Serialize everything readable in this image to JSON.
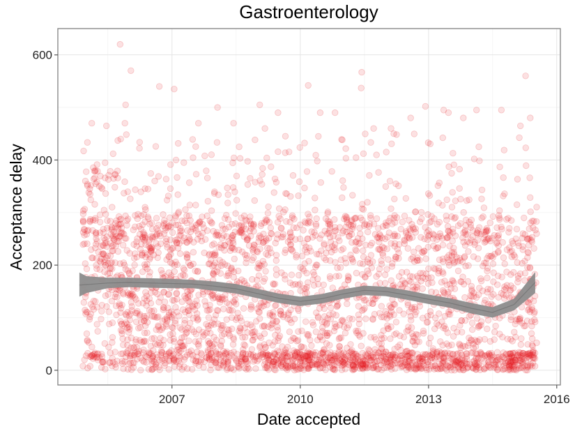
{
  "chart_data": {
    "type": "scatter",
    "title": "Gastroenterology",
    "xlabel": "Date accepted",
    "ylabel": "Acceptance delay",
    "x_axis_type": "date",
    "xlim": [
      "2004-05-01",
      "2016-02-01"
    ],
    "ylim": [
      -28,
      650
    ],
    "x_ticks": [
      {
        "value": "2007-01-01",
        "label": "2007"
      },
      {
        "value": "2010-01-01",
        "label": "2010"
      },
      {
        "value": "2013-01-01",
        "label": "2013"
      },
      {
        "value": "2016-01-01",
        "label": "2016"
      }
    ],
    "y_ticks": [
      0,
      200,
      400,
      600
    ],
    "grid": true,
    "legend": "none",
    "point_color": "#e41a1c",
    "point_opacity": 0.13,
    "smooth_color": "#8c8c8c",
    "series": [
      {
        "kind": "points",
        "x": [
          "2005-10-15",
          "2005-12-01",
          "2006-09-15",
          "2007-01-20",
          "2008-01-25",
          "2009-01-20",
          "2010-03-10",
          "2011-06-10",
          "2011-06-05",
          "2012-03-10",
          "2012-12-05",
          "2015-04-10",
          "2006-01-15",
          "2005-11-25",
          "2005-10-20",
          "2008-06-10",
          "2009-03-05",
          "2010-06-20",
          "2011-09-20",
          "2012-08-01",
          "2013-05-10",
          "2014-02-15",
          "2014-09-15",
          "2015-02-25",
          "2015-05-20",
          "2005-02-15",
          "2005-06-20",
          "2009-06-25",
          "2012-02-15",
          "2013-06-20",
          "2007-08-15",
          "2010-10-25",
          "2013-10-25"
        ],
        "y": [
          620,
          505,
          540,
          535,
          500,
          505,
          542,
          567,
          537,
          450,
          502,
          560,
          570,
          470,
          440,
          470,
          460,
          490,
          460,
          480,
          495,
          495,
          495,
          465,
          480,
          470,
          465,
          490,
          460,
          490,
          470,
          490,
          480
        ]
      },
      {
        "kind": "smooth",
        "x": [
          "2004-11-01",
          "2005-01-01",
          "2005-07-01",
          "2006-01-01",
          "2006-07-01",
          "2007-01-01",
          "2007-07-01",
          "2008-01-01",
          "2008-07-01",
          "2009-01-01",
          "2009-07-01",
          "2010-01-01",
          "2010-07-01",
          "2011-01-01",
          "2011-07-01",
          "2012-01-01",
          "2012-07-01",
          "2013-01-01",
          "2013-07-01",
          "2014-01-01",
          "2014-07-01",
          "2015-01-01",
          "2015-07-01"
        ],
        "y": [
          162,
          163,
          166,
          167,
          166,
          165,
          164,
          160,
          155,
          146,
          137,
          131,
          136,
          145,
          152,
          150,
          143,
          135,
          128,
          118,
          110,
          125,
          167
        ],
        "ymin": [
          140,
          147,
          156,
          158,
          157,
          156,
          156,
          151,
          146,
          137,
          128,
          122,
          127,
          136,
          143,
          141,
          134,
          126,
          119,
          108,
          100,
          114,
          147
        ],
        "ymax": [
          186,
          179,
          176,
          176,
          175,
          174,
          172,
          169,
          164,
          155,
          146,
          140,
          145,
          154,
          161,
          159,
          152,
          144,
          137,
          128,
          120,
          136,
          187
        ]
      }
    ]
  }
}
